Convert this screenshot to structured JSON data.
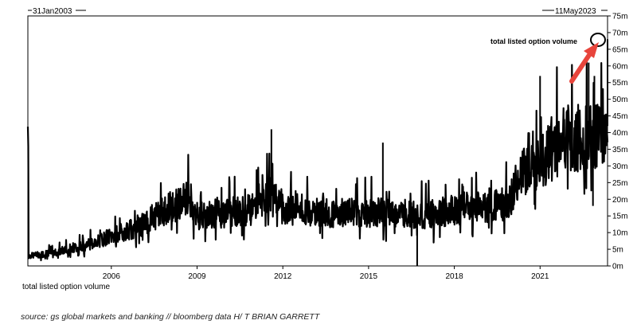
{
  "chart_data": {
    "type": "line",
    "start_label": "31Jan2003",
    "end_label": "11May2023",
    "series": [
      {
        "name": "total listed option volume",
        "points": [
          [
            2003.1,
            3
          ],
          [
            2004.0,
            4
          ],
          [
            2005.0,
            6
          ],
          [
            2006.0,
            9
          ],
          [
            2007.0,
            12
          ],
          [
            2007.7,
            16
          ],
          [
            2008.7,
            20
          ],
          [
            2009.0,
            15
          ],
          [
            2010.0,
            16
          ],
          [
            2011.0,
            17
          ],
          [
            2011.6,
            21
          ],
          [
            2012.0,
            17
          ],
          [
            2013.0,
            16
          ],
          [
            2014.0,
            16
          ],
          [
            2015.0,
            16
          ],
          [
            2016.0,
            16
          ],
          [
            2016.8,
            15
          ],
          [
            2017.0,
            15
          ],
          [
            2018.0,
            17
          ],
          [
            2019.0,
            18
          ],
          [
            2019.9,
            19
          ],
          [
            2020.2,
            26
          ],
          [
            2021.0,
            32
          ],
          [
            2021.5,
            36
          ],
          [
            2022.0,
            38
          ],
          [
            2022.5,
            37
          ],
          [
            2023.0,
            40
          ],
          [
            2023.36,
            42
          ]
        ],
        "spikes": [
          [
            2011.6,
            41
          ],
          [
            2015.5,
            37
          ],
          [
            2021.0,
            57
          ],
          [
            2022.7,
            61
          ],
          [
            2022.9,
            57
          ],
          [
            2023.36,
            68
          ],
          [
            2016.7,
            0
          ],
          [
            2022.85,
            18
          ]
        ]
      }
    ],
    "xticks": [
      2006,
      2009,
      2012,
      2015,
      2018,
      2021
    ],
    "xlim": [
      2003.08,
      2023.36
    ],
    "yticks": [
      0,
      5,
      10,
      15,
      20,
      25,
      30,
      35,
      40,
      45,
      50,
      55,
      60,
      65,
      70,
      75
    ],
    "ytick_suffix": "m",
    "ylim": [
      0,
      75
    ],
    "legend": "total listed option volume",
    "annotation": "total listed option volume",
    "accent_color": "#e8453c"
  },
  "source_text": "source: gs global markets and banking // bloomberg data  H/ T BRIAN GARRETT"
}
